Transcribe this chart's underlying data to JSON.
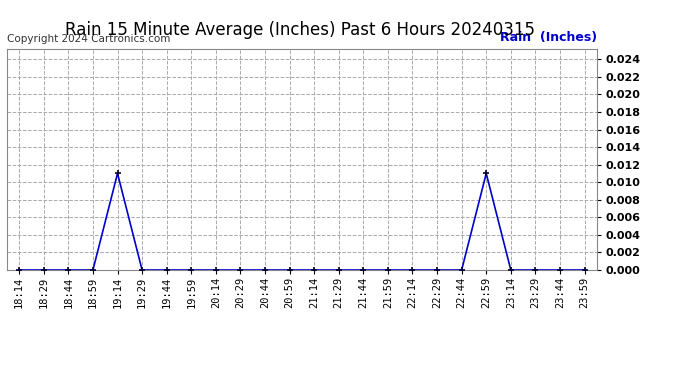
{
  "title": "Rain 15 Minute Average (Inches) Past 6 Hours 20240315",
  "copyright": "Copyright 2024 Cartronics.com",
  "legend_label": "Rain  (Inches)",
  "x_labels": [
    "18:14",
    "18:29",
    "18:44",
    "18:59",
    "19:14",
    "19:29",
    "19:44",
    "19:59",
    "20:14",
    "20:29",
    "20:44",
    "20:59",
    "21:14",
    "21:29",
    "21:44",
    "21:59",
    "22:14",
    "22:29",
    "22:44",
    "22:59",
    "23:14",
    "23:29",
    "23:44",
    "23:59"
  ],
  "y_values": [
    0.0,
    0.0,
    0.0,
    0.0,
    0.011,
    0.0,
    0.0,
    0.0,
    0.0,
    0.0,
    0.0,
    0.0,
    0.0,
    0.0,
    0.0,
    0.0,
    0.0,
    0.0,
    0.0,
    0.011,
    0.0,
    0.0,
    0.0,
    0.0
  ],
  "ylim": [
    0.0,
    0.0252
  ],
  "y_ticks": [
    0.0,
    0.002,
    0.004,
    0.006,
    0.008,
    0.01,
    0.012,
    0.014,
    0.016,
    0.018,
    0.02,
    0.022,
    0.024
  ],
  "line_color": "#0000cc",
  "marker_color": "#000033",
  "grid_color": "#aaaaaa",
  "background_color": "#ffffff",
  "title_fontsize": 12,
  "copyright_fontsize": 7.5,
  "legend_fontsize": 9,
  "tick_fontsize": 7.5,
  "ytick_fontsize": 8
}
